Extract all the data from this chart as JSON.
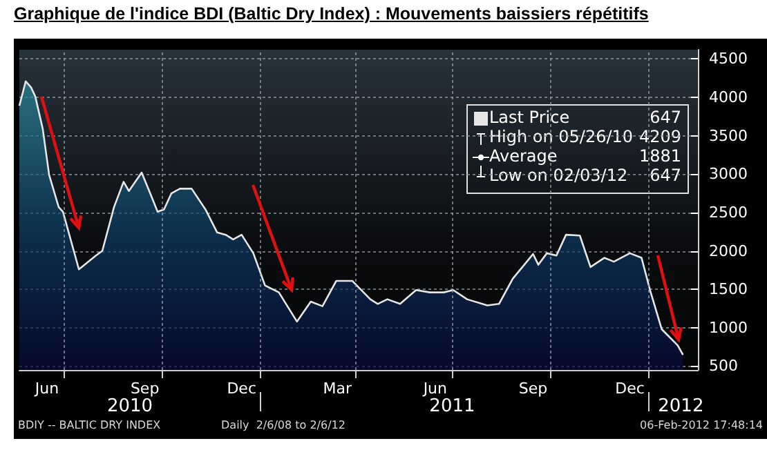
{
  "chart_data": {
    "type": "area",
    "title": "Graphique de l'indice BDI (Baltic Dry Index) : Mouvements baissiers répétitifs",
    "x": [
      "2010-05-20",
      "2010-05-26",
      "2010-05-31",
      "2010-06-04",
      "2010-06-11",
      "2010-06-17",
      "2010-06-26",
      "2010-06-30",
      "2010-07-15",
      "2010-07-31",
      "2010-08-06",
      "2010-08-17",
      "2010-08-26",
      "2010-08-31",
      "2010-09-12",
      "2010-09-20",
      "2010-09-27",
      "2010-10-03",
      "2010-10-10",
      "2010-10-18",
      "2010-10-29",
      "2010-11-11",
      "2010-11-22",
      "2010-11-30",
      "2010-12-07",
      "2010-12-15",
      "2010-12-26",
      "2011-01-06",
      "2011-01-19",
      "2011-02-05",
      "2011-02-18",
      "2011-03-01",
      "2011-03-14",
      "2011-03-29",
      "2011-04-15",
      "2011-04-22",
      "2011-05-01",
      "2011-05-13",
      "2011-05-28",
      "2011-06-10",
      "2011-06-23",
      "2011-07-02",
      "2011-07-15",
      "2011-08-03",
      "2011-08-14",
      "2011-08-27",
      "2011-09-05",
      "2011-09-15",
      "2011-09-20",
      "2011-09-28",
      "2011-10-07",
      "2011-10-16",
      "2011-10-29",
      "2011-11-08",
      "2011-11-21",
      "2011-11-30",
      "2011-12-15",
      "2011-12-26",
      "2012-01-03",
      "2012-01-14",
      "2012-01-29",
      "2012-02-03"
    ],
    "series": [
      {
        "name": "Last Price",
        "color": "#e6e6e6",
        "values": [
          3890,
          4209,
          4130,
          4010,
          3590,
          2990,
          2570,
          2510,
          1760,
          1940,
          2000,
          2570,
          2900,
          2780,
          3020,
          2750,
          2510,
          2540,
          2750,
          2810,
          2810,
          2540,
          2240,
          2210,
          2150,
          2210,
          1970,
          1550,
          1460,
          1080,
          1340,
          1280,
          1610,
          1610,
          1370,
          1310,
          1370,
          1310,
          1490,
          1460,
          1460,
          1490,
          1370,
          1290,
          1310,
          1640,
          1790,
          1960,
          1820,
          1970,
          1940,
          2210,
          2200,
          1790,
          1910,
          1860,
          1970,
          1910,
          1490,
          980,
          770,
          647
        ]
      }
    ],
    "xlim": [
      "2010-05-20",
      "2012-02-17"
    ],
    "xticks": [
      {
        "value": "2010-06-15",
        "label": "Jun"
      },
      {
        "value": "2010-07-01",
        "label": null
      },
      {
        "value": "2010-09-15",
        "label": "Sep"
      },
      {
        "value": "2010-10-01",
        "label": null
      },
      {
        "value": "2010-12-15",
        "label": "Dec"
      },
      {
        "value": "2011-01-01",
        "label": null
      },
      {
        "value": "2011-03-15",
        "label": "Mar"
      },
      {
        "value": "2011-04-01",
        "label": null
      },
      {
        "value": "2011-06-15",
        "label": "Jun"
      },
      {
        "value": "2011-07-01",
        "label": null
      },
      {
        "value": "2011-09-15",
        "label": "Sep"
      },
      {
        "value": "2011-10-01",
        "label": null
      },
      {
        "value": "2011-12-15",
        "label": "Dec"
      },
      {
        "value": "2012-01-01",
        "label": null
      }
    ],
    "x2lim": [
      "2010-05-20",
      "2012-02-17"
    ],
    "x2ticks": [
      {
        "value": "2010-09-01",
        "label": "2010"
      },
      {
        "value": "2011-01-01",
        "label": null
      },
      {
        "value": "2011-07-01",
        "label": "2011"
      },
      {
        "value": "2012-01-01",
        "label": null
      },
      {
        "value": "2012-02-01",
        "label": "2012"
      }
    ],
    "ylim": [
      450,
      4620
    ],
    "yticks": [
      500,
      1000,
      1500,
      2000,
      2500,
      3000,
      3500,
      4000,
      4500
    ],
    "grid": true,
    "legend": "top right",
    "annotations": [
      "647",
      "High on 05/26/10",
      "4209",
      "Average",
      "1881",
      "Low on 02/03/12",
      "647",
      "BDIY -- BALTIC DRY INDEX",
      "Daily  2/6/08 to 2/6/12",
      "06-Feb-2012 17:48:14"
    ]
  }
}
